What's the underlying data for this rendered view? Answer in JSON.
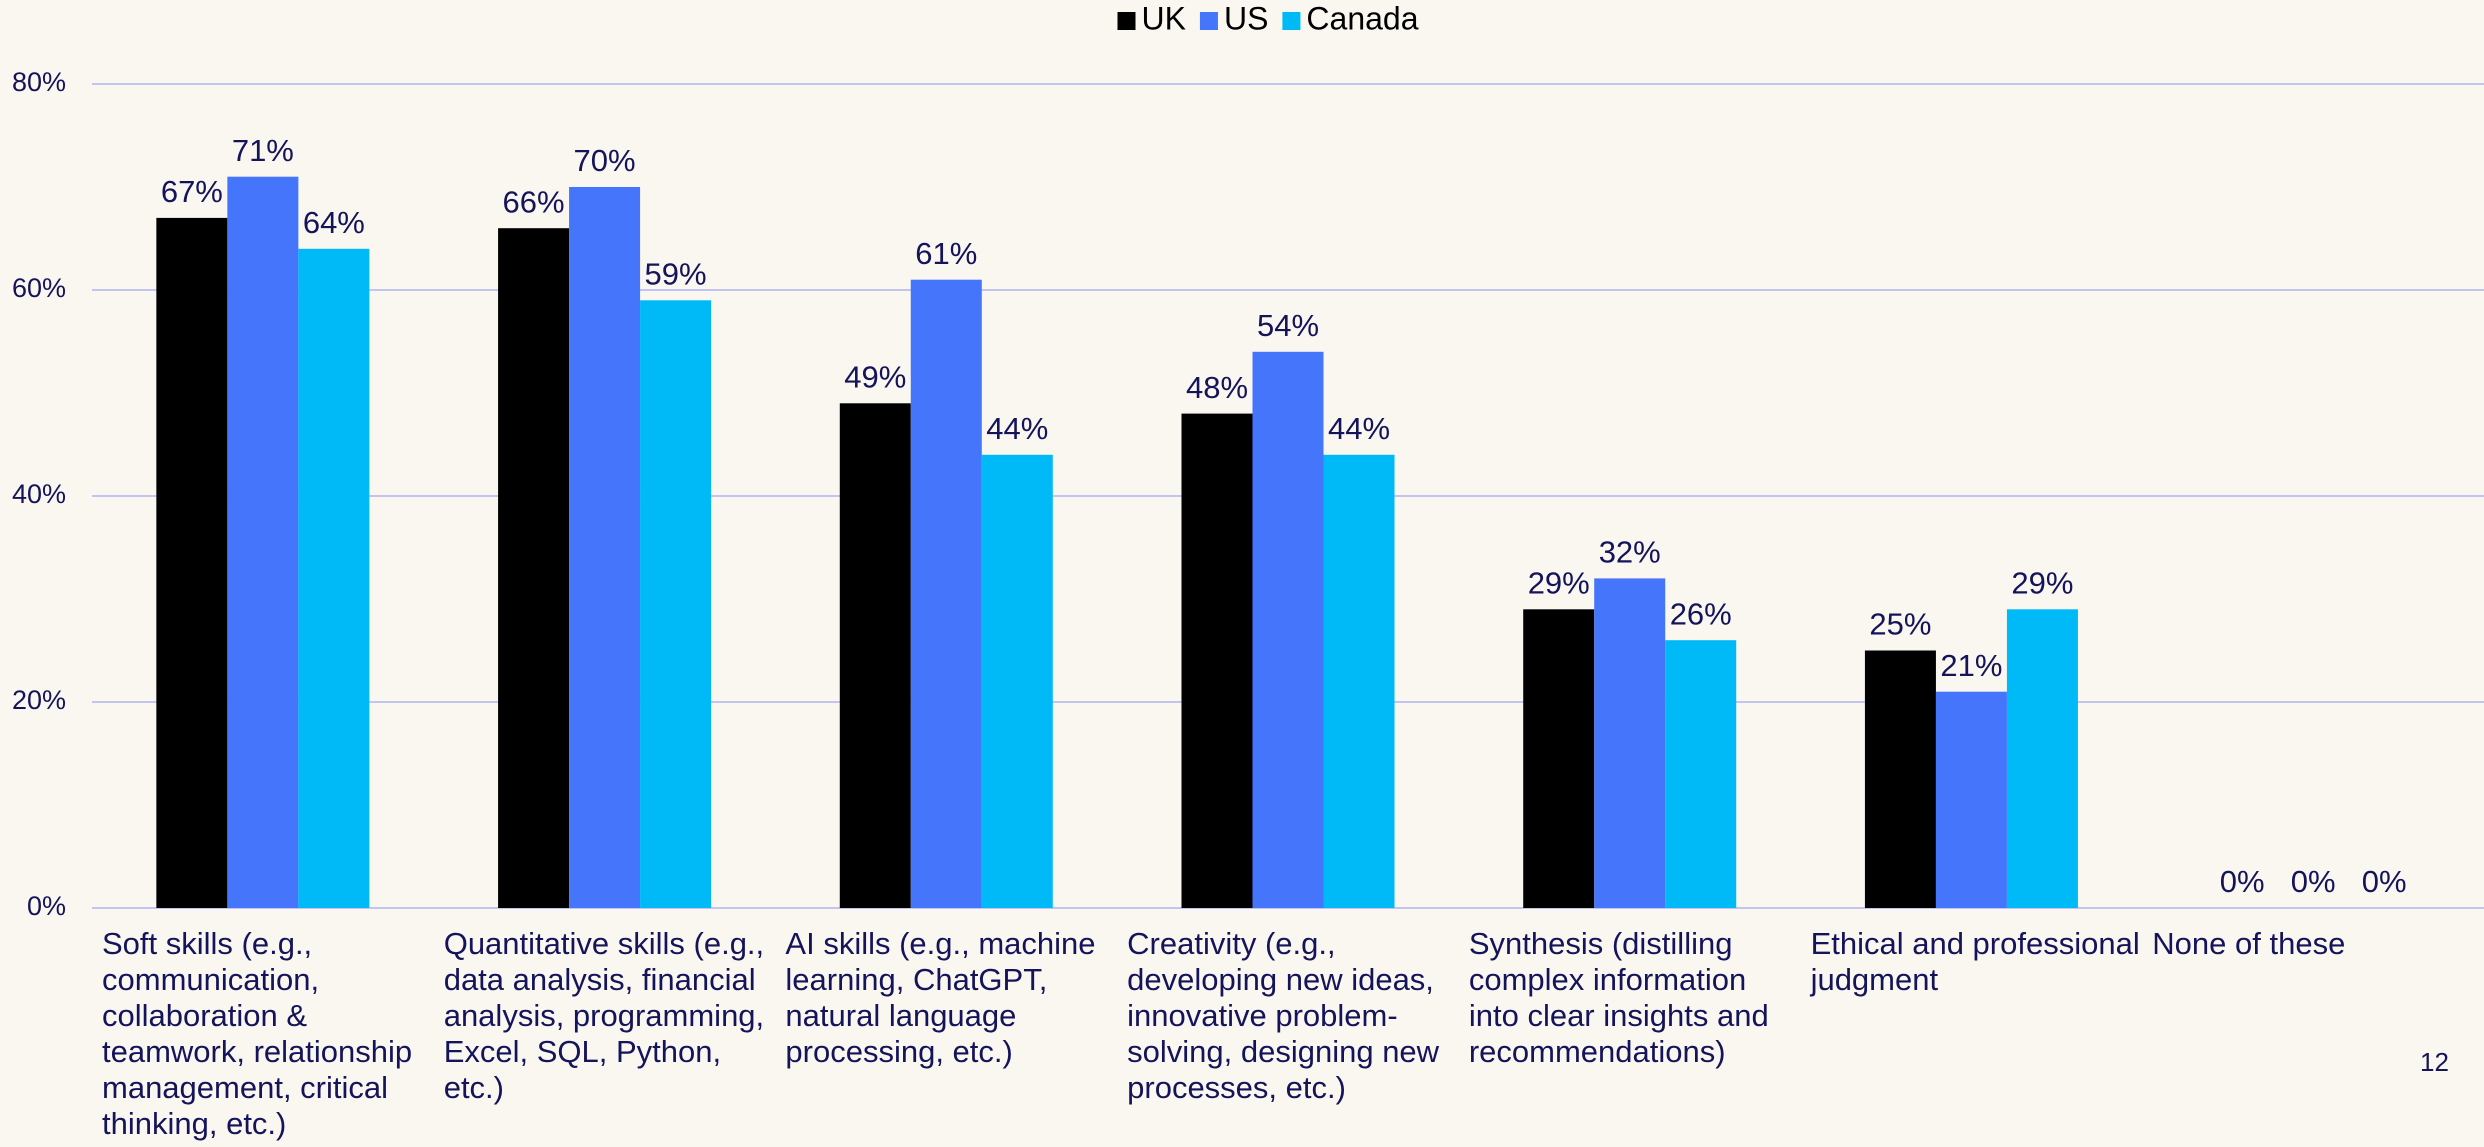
{
  "chart_data": {
    "type": "bar",
    "categories": [
      "Soft skills (e.g., communication, collaboration & teamwork, relationship management, critical thinking,  etc.)",
      "Quantitative skills (e.g., data analysis, financial analysis, programming, Excel, SQL, Python, etc.)",
      "AI skills (e.g., machine learning, ChatGPT, natural language processing, etc.)",
      "Creativity (e.g., developing new ideas, innovative problem-solving, designing new processes, etc.)",
      "Synthesis (distilling complex information into clear insights and recommendations)",
      "Ethical and professional judgment",
      "None of these"
    ],
    "series": [
      {
        "name": "UK",
        "color": "#000000",
        "values": [
          67,
          66,
          49,
          48,
          29,
          25,
          0
        ],
        "value_labels": [
          "67%",
          "66%",
          "49%",
          "48%",
          "29%",
          "25%",
          "0%"
        ]
      },
      {
        "name": "US",
        "color": "#4575fb",
        "values": [
          71,
          70,
          61,
          54,
          32,
          21,
          0
        ],
        "value_labels": [
          "71%",
          "70%",
          "61%",
          "54%",
          "32%",
          "21%",
          "0%"
        ]
      },
      {
        "name": "Canada",
        "color": "#00b9f7",
        "values": [
          64,
          59,
          44,
          44,
          26,
          29,
          0
        ],
        "value_labels": [
          "64%",
          "59%",
          "44%",
          "44%",
          "26%",
          "29%",
          "0%"
        ]
      }
    ],
    "ylim": [
      0,
      80
    ],
    "yticks": [
      {
        "value": 0,
        "label": "0%"
      },
      {
        "value": 20,
        "label": "20%"
      },
      {
        "value": 40,
        "label": "40%"
      },
      {
        "value": 60,
        "label": "60%"
      },
      {
        "value": 80,
        "label": "80%"
      }
    ],
    "grid": true,
    "legend": "top"
  },
  "page_number": "12"
}
